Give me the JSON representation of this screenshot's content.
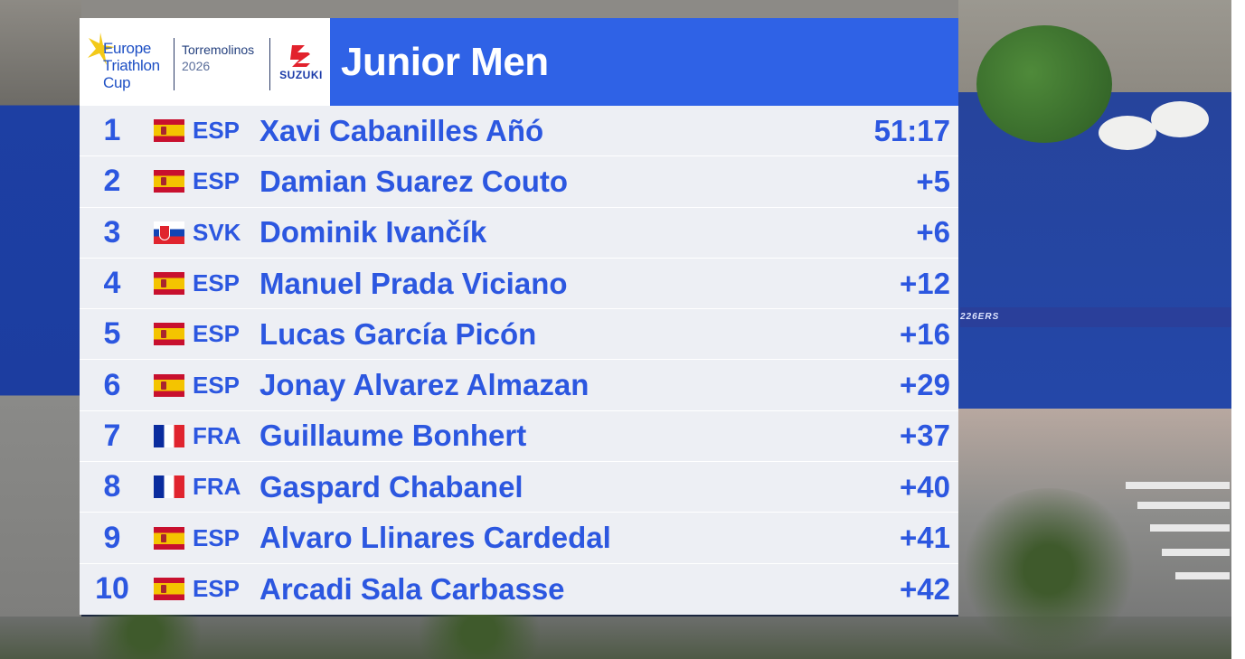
{
  "header": {
    "event_logo_text": [
      "Europe",
      "Triathlon",
      "Cup"
    ],
    "venue": "Torremolinos",
    "year": "2026",
    "sponsor": "SUZUKI",
    "title": "Junior Men"
  },
  "results": [
    {
      "rank": "1",
      "flag": "ESP",
      "code": "ESP",
      "name": "Xavi Cabanilles Añó",
      "time": "51:17"
    },
    {
      "rank": "2",
      "flag": "ESP",
      "code": "ESP",
      "name": "Damian Suarez Couto",
      "time": "+5"
    },
    {
      "rank": "3",
      "flag": "SVK",
      "code": "SVK",
      "name": "Dominik Ivančík",
      "time": "+6"
    },
    {
      "rank": "4",
      "flag": "ESP",
      "code": "ESP",
      "name": "Manuel Prada Viciano",
      "time": "+12"
    },
    {
      "rank": "5",
      "flag": "ESP",
      "code": "ESP",
      "name": "Lucas García Picón",
      "time": "+16"
    },
    {
      "rank": "6",
      "flag": "ESP",
      "code": "ESP",
      "name": "Jonay Alvarez Almazan",
      "time": "+29"
    },
    {
      "rank": "7",
      "flag": "FRA",
      "code": "FRA",
      "name": "Guillaume Bonhert",
      "time": "+37"
    },
    {
      "rank": "8",
      "flag": "FRA",
      "code": "FRA",
      "name": "Gaspard Chabanel",
      "time": "+40"
    },
    {
      "rank": "9",
      "flag": "ESP",
      "code": "ESP",
      "name": "Alvaro Llinares Cardedal",
      "time": "+41"
    },
    {
      "rank": "10",
      "flag": "ESP",
      "code": "ESP",
      "name": "Arcadi Sala Carbasse",
      "time": "+42"
    }
  ],
  "background": {
    "banner_text": "226ERS"
  },
  "colors": {
    "header_blue": "#2f62e6",
    "text_blue": "#2c57e0",
    "row_bg": "#edeff4"
  }
}
